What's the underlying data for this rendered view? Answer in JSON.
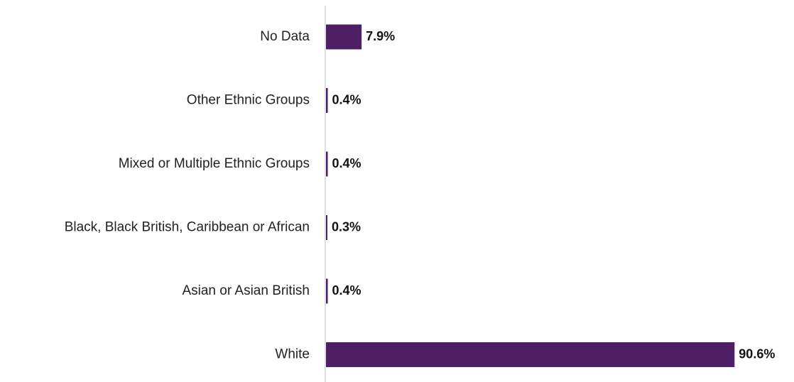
{
  "chart_data": {
    "type": "bar",
    "orientation": "horizontal",
    "categories": [
      "No Data",
      "Other Ethnic Groups",
      "Mixed or Multiple Ethnic Groups",
      "Black, Black British, Caribbean or African",
      "Asian or Asian British",
      "White"
    ],
    "values": [
      7.9,
      0.4,
      0.4,
      0.3,
      0.4,
      90.6
    ],
    "value_labels": [
      "7.9%",
      "0.4%",
      "0.4%",
      "0.3%",
      "0.4%",
      "90.6%"
    ],
    "title": "",
    "xlabel": "",
    "ylabel": "",
    "xlim": [
      0,
      100
    ],
    "grid": false,
    "legend": "none",
    "colors": {
      "bar": "#4f1f66",
      "axis": "#d6d6d6"
    }
  }
}
